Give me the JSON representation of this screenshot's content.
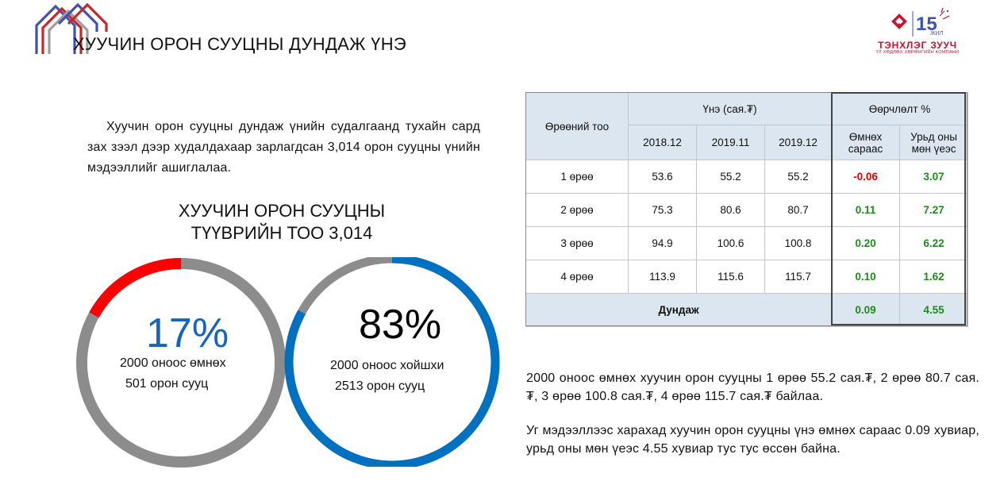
{
  "header": {
    "title": "ХУУЧИН ОРОН СУУЦНЫ ДУНДАЖ ҮНЭ"
  },
  "logo": {
    "name": "ТЭНХЛЭГ ЗУУЧ",
    "tagline": "ҮЛ ХӨДЛӨХ ХӨРӨНГИЙН КОМПАНИ",
    "anniversary_number": "15",
    "anniversary_word": "ЖИЛ",
    "brand_color": "#c8102e"
  },
  "intro": "Хуучин орон сууцны дундаж үнийн судалгаанд тухайн сард зах зээл дээр худалдахаар зарлагдсан 3,014 орон сууцны үнийн мэдээллийг ашиглалаа.",
  "sample": {
    "heading_line1": "ХУУЧИН ОРОН СУУЦНЫ",
    "heading_line2": "ТҮҮВРИЙН ТОО 3,014",
    "rings": [
      {
        "percent_label": "17%",
        "percent": 17,
        "line1": "2000 оноос өмнөх",
        "line2": "501 орон сууц",
        "color": "#ff0000",
        "label_color": "#1565c0"
      },
      {
        "percent_label": "83%",
        "percent": 83,
        "line1": "2000 оноос хойшхи",
        "line2": "2513 орон сууц",
        "color": "#0070c0",
        "label_color": "#000000"
      }
    ],
    "ring_track_color": "#8c8c8c"
  },
  "table": {
    "col_rooms": "Өрөөний тоо",
    "group_price": "Үнэ (сая.₮)",
    "group_change": "Өөрчлөлт %",
    "years": [
      "2018.12",
      "2019.11",
      "2019.12"
    ],
    "change_cols": [
      "Өмнөх сараас",
      "Урьд оны мөн үеэс"
    ],
    "rows": [
      {
        "rooms": "1 өрөө",
        "v1": "53.6",
        "v2": "55.2",
        "v3": "55.2",
        "mom": "-0.06",
        "yoy": "3.07"
      },
      {
        "rooms": "2 өрөө",
        "v1": "75.3",
        "v2": "80.6",
        "v3": "80.7",
        "mom": "0.11",
        "yoy": "7.27"
      },
      {
        "rooms": "3 өрөө",
        "v1": "94.9",
        "v2": "100.6",
        "v3": "100.8",
        "mom": "0.20",
        "yoy": "6.22"
      },
      {
        "rooms": "4 өрөө",
        "v1": "113.9",
        "v2": "115.6",
        "v3": "115.7",
        "mom": "0.10",
        "yoy": "1.62"
      }
    ],
    "avg_label": "Дундаж",
    "avg_mom": "0.09",
    "avg_yoy": "4.55",
    "negative_color": "#e00000",
    "positive_color": "#1e8a1e"
  },
  "summary": {
    "p1": "2000 оноос өмнөх хуучин орон сууцны 1 өрөө 55.2 сая.₮, 2 өрөө 80.7 сая.₮, 3 өрөө 100.8 сая.₮, 4 өрөө 115.7 сая.₮ байлаа.",
    "p2": "Уг мэдээллээс харахад хуучин орон сууцны үнэ өмнөх сараас 0.09 хувиар, урьд оны мөн үеэс 4.55 хувиар тус тус өссөн байна."
  }
}
